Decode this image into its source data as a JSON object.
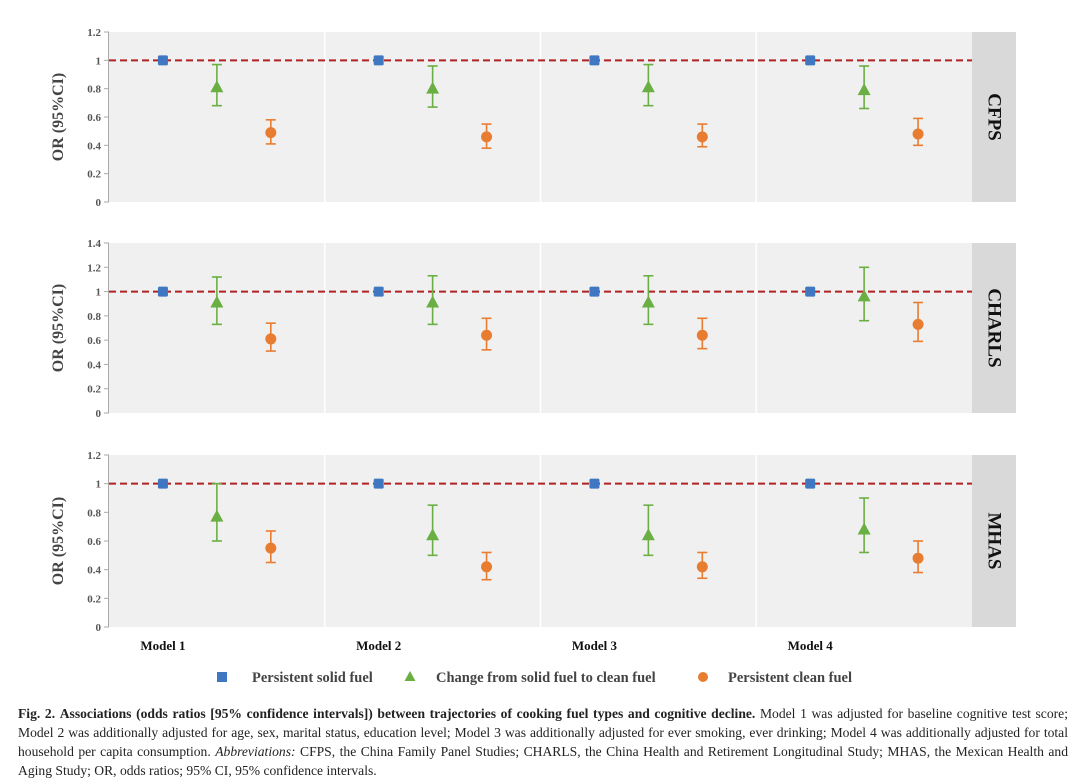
{
  "chart_data": {
    "type": "scatter",
    "subtype": "forest-plot-faceted",
    "ylabel": "OR (95%CI)",
    "categories": [
      "Model 1",
      "Model 2",
      "Model 3",
      "Model 4"
    ],
    "reference_line": 1,
    "legend": {
      "placement": "bottom",
      "entries": [
        {
          "name": "Persistent solid fuel",
          "marker": "square",
          "color": "#3f78c0"
        },
        {
          "name": "Change from solid fuel to clean fuel",
          "marker": "triangle",
          "color": "#6aaf44"
        },
        {
          "name": "Persistent clean fuel",
          "marker": "circle",
          "color": "#e87d32"
        }
      ]
    },
    "colors": {
      "panel_bg": "#f0f0f0",
      "strip_bg": "#d9d9d9",
      "reference_line": "#b22222",
      "axis": "#aaaaaa"
    },
    "panels": [
      {
        "label": "CFPS",
        "ylim": [
          0,
          1.2
        ],
        "yticks": [
          "0",
          "0.2",
          "0.4",
          "0.6",
          "0.8",
          "1",
          "1.2"
        ],
        "ytick_values": [
          0,
          0.2,
          0.4,
          0.6,
          0.8,
          1,
          1.2
        ],
        "series": [
          {
            "name": "Persistent solid fuel",
            "values": [
              1,
              1,
              1,
              1
            ],
            "lower": [
              null,
              null,
              null,
              null
            ],
            "upper": [
              null,
              null,
              null,
              null
            ]
          },
          {
            "name": "Change from solid fuel to clean fuel",
            "values": [
              0.81,
              0.8,
              0.81,
              0.79
            ],
            "lower": [
              0.68,
              0.67,
              0.68,
              0.66
            ],
            "upper": [
              0.97,
              0.96,
              0.97,
              0.96
            ]
          },
          {
            "name": "Persistent clean fuel",
            "values": [
              0.49,
              0.46,
              0.46,
              0.48
            ],
            "lower": [
              0.41,
              0.38,
              0.39,
              0.4
            ],
            "upper": [
              0.58,
              0.55,
              0.55,
              0.59
            ]
          }
        ]
      },
      {
        "label": "CHARLS",
        "ylim": [
          0,
          1.4
        ],
        "yticks": [
          "0",
          "0.2",
          "0.4",
          "0.6",
          "0.8",
          "1",
          "1.2",
          "1.4"
        ],
        "ytick_values": [
          0,
          0.2,
          0.4,
          0.6,
          0.8,
          1,
          1.2,
          1.4
        ],
        "series": [
          {
            "name": "Persistent solid fuel",
            "values": [
              1,
              1,
              1,
              1
            ],
            "lower": [
              null,
              null,
              null,
              null
            ],
            "upper": [
              null,
              null,
              null,
              null
            ]
          },
          {
            "name": "Change from solid fuel to clean fuel",
            "values": [
              0.91,
              0.91,
              0.91,
              0.96
            ],
            "lower": [
              0.73,
              0.73,
              0.73,
              0.76
            ],
            "upper": [
              1.12,
              1.13,
              1.13,
              1.2
            ]
          },
          {
            "name": "Persistent clean fuel",
            "values": [
              0.61,
              0.64,
              0.64,
              0.73
            ],
            "lower": [
              0.51,
              0.52,
              0.53,
              0.59
            ],
            "upper": [
              0.74,
              0.78,
              0.78,
              0.91
            ]
          }
        ]
      },
      {
        "label": "MHAS",
        "ylim": [
          0,
          1.2
        ],
        "yticks": [
          "0",
          "0.2",
          "0.4",
          "0.6",
          "0.8",
          "1",
          "1.2"
        ],
        "ytick_values": [
          0,
          0.2,
          0.4,
          0.6,
          0.8,
          1,
          1.2
        ],
        "series": [
          {
            "name": "Persistent solid fuel",
            "values": [
              1,
              1,
              1,
              1
            ],
            "lower": [
              null,
              null,
              null,
              null
            ],
            "upper": [
              null,
              null,
              null,
              null
            ]
          },
          {
            "name": "Change from solid fuel to clean fuel",
            "values": [
              0.77,
              0.64,
              0.64,
              0.68
            ],
            "lower": [
              0.6,
              0.5,
              0.5,
              0.52
            ],
            "upper": [
              1.0,
              0.85,
              0.85,
              0.9
            ]
          },
          {
            "name": "Persistent clean fuel",
            "values": [
              0.55,
              0.42,
              0.42,
              0.48
            ],
            "lower": [
              0.45,
              0.33,
              0.34,
              0.38
            ],
            "upper": [
              0.67,
              0.52,
              0.52,
              0.6
            ]
          }
        ]
      }
    ]
  },
  "caption": {
    "fig_label": "Fig. 2.",
    "title": "Associations (odds ratios [95% confidence intervals]) between trajectories of cooking fuel types and cognitive decline.",
    "body": "Model 1 was adjusted for baseline cognitive test score; Model 2 was additionally adjusted for age, sex, marital status, education level; Model 3 was additionally adjusted for ever smoking, ever drinking; Model 4 was additionally adjusted for total household per capita consumption.",
    "abbr_label": "Abbreviations:",
    "abbr_text": "CFPS, the China Family Panel Studies; CHARLS, the China Health and Retirement Longitudinal Study; MHAS, the Mexican Health and Aging Study; OR, odds ratios; 95% CI, 95% confidence intervals."
  }
}
